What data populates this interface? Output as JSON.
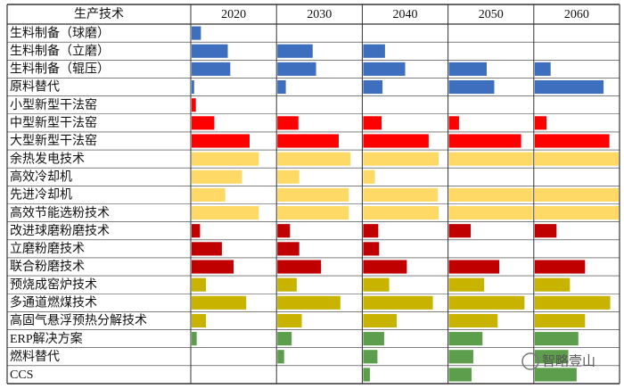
{
  "chart_data": {
    "type": "bar",
    "row_header": "生产技术",
    "categories": [
      "生料制备（球磨）",
      "生料制备（立磨）",
      "生料制备（辊压）",
      "原料替代",
      "小型新型干法窑",
      "中型新型干法窑",
      "大型新型干法窑",
      "余热发电技术",
      "高效冷却机",
      "先进冷却机",
      "高效节能选粉技术",
      "改进球磨粉磨技术",
      "立磨粉磨技术",
      "联合粉磨技术",
      "预烧成窑炉技术",
      "多通道燃煤技术",
      "高固气悬浮预热分解技术",
      "ERP解决方案",
      "燃料替代",
      "CCS"
    ],
    "row_colors": [
      "#3d6fbe",
      "#3d6fbe",
      "#3d6fbe",
      "#3d6fbe",
      "#ff0000",
      "#ff0000",
      "#ff0000",
      "#ffd966",
      "#ffd966",
      "#ffd966",
      "#ffd966",
      "#c00000",
      "#c00000",
      "#c00000",
      "#c8b400",
      "#c8b400",
      "#c8b400",
      "#5c9e4c",
      "#5c9e4c",
      "#5c9e4c"
    ],
    "xlim": [
      0,
      100
    ],
    "series": [
      {
        "name": "2020",
        "values": [
          11,
          43,
          46,
          3,
          5,
          27,
          69,
          80,
          60,
          40,
          80,
          10,
          36,
          50,
          17,
          65,
          17,
          6,
          0,
          0
        ]
      },
      {
        "name": "2030",
        "values": [
          0,
          42,
          46,
          10,
          0,
          25,
          73,
          87,
          26,
          85,
          85,
          15,
          26,
          52,
          23,
          75,
          29,
          17,
          8,
          0
        ]
      },
      {
        "name": "2040",
        "values": [
          0,
          26,
          50,
          23,
          0,
          22,
          78,
          90,
          14,
          89,
          90,
          18,
          19,
          52,
          31,
          83,
          40,
          25,
          17,
          8
        ]
      },
      {
        "name": "2050",
        "values": [
          0,
          0,
          45,
          54,
          0,
          12,
          86,
          100,
          0,
          100,
          100,
          26,
          0,
          60,
          42,
          90,
          58,
          40,
          29,
          27
        ]
      },
      {
        "name": "2060",
        "values": [
          0,
          0,
          19,
          82,
          0,
          14,
          89,
          100,
          0,
          100,
          100,
          26,
          0,
          60,
          42,
          90,
          60,
          52,
          40,
          50
        ]
      }
    ],
    "watermark": "智略壹山"
  }
}
